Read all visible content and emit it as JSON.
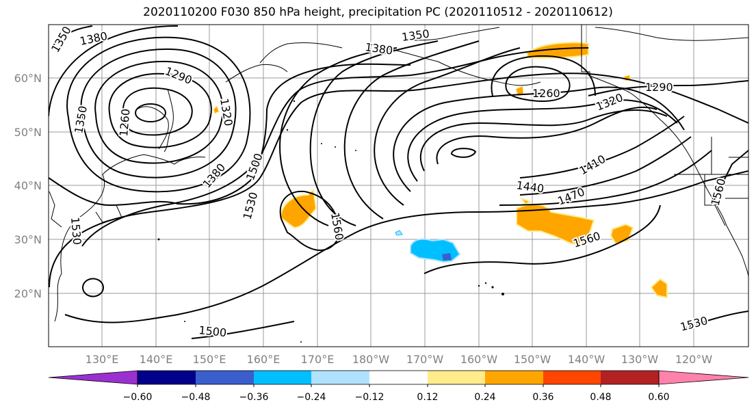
{
  "title": "2020110200 F030 850 hPa height, precipitation PC (2020110512 - 2020110612)",
  "lat_labels": [
    "60°N",
    "50°N",
    "40°N",
    "30°N",
    "20°N"
  ],
  "lon_labels": [
    "130°E",
    "140°E",
    "150°E",
    "160°E",
    "170°E",
    "180°W",
    "170°W",
    "160°W",
    "150°W",
    "140°W",
    "130°W",
    "120°W"
  ],
  "contour_labels": [
    "1350",
    "1380",
    "1350",
    "1380",
    "1290",
    "1320",
    "1260",
    "1350",
    "1380",
    "1500",
    "1530",
    "1560",
    "1530",
    "1500",
    "1260",
    "1290",
    "1320",
    "1410",
    "1440",
    "1470",
    "1560",
    "1560",
    "1530"
  ],
  "colorbar": {
    "ticks": [
      "−0.60",
      "−0.48",
      "−0.36",
      "−0.24",
      "−0.12",
      "0.12",
      "0.24",
      "0.36",
      "0.48",
      "0.60"
    ],
    "colors": [
      "#9b30d0",
      "#00008b",
      "#3a5fcd",
      "#00bfff",
      "#b0e2ff",
      "#ffffff",
      "#ffec8b",
      "#ffa500",
      "#ff4500",
      "#b22222",
      "#ff82ab"
    ]
  },
  "colors": {
    "positive_precip": "#ffa500",
    "positive_precip_light": "#ffec8b",
    "negative_precip": "#00bfff",
    "negative_precip_dark": "#3a5fcd",
    "grid": "#999999",
    "axis_label": "#808080"
  }
}
